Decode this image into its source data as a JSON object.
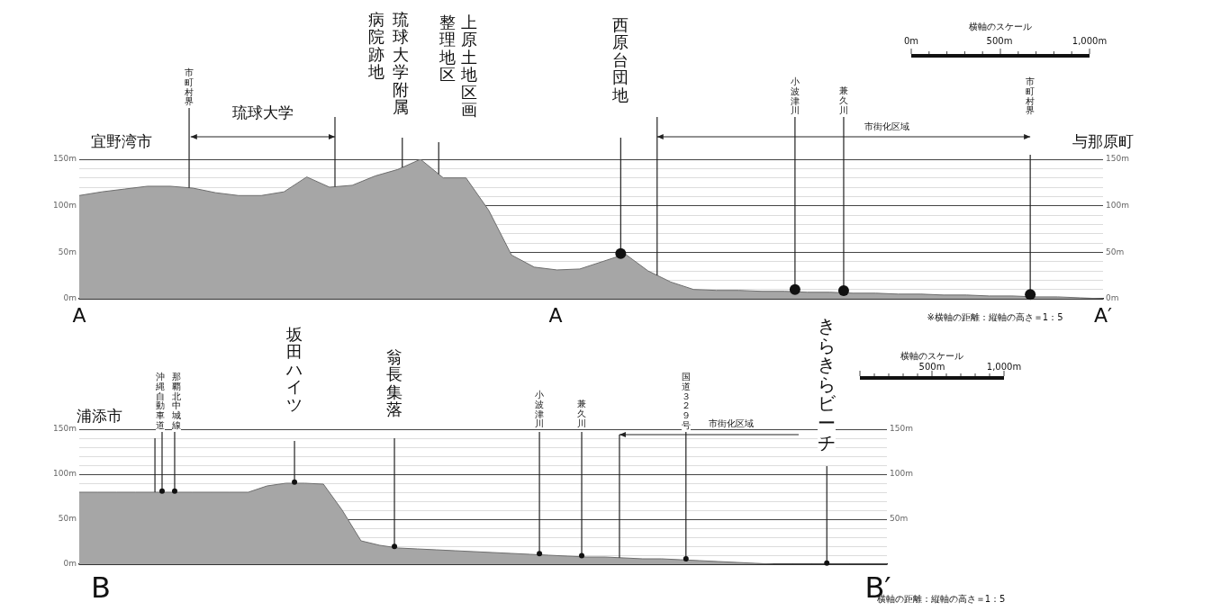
{
  "chart_data": [
    {
      "type": "area",
      "categories": [
        null,
        null,
        null,
        null,
        null,
        null,
        null,
        null,
        null,
        null,
        null,
        null,
        null,
        null,
        null,
        null,
        null,
        null,
        null,
        null,
        null,
        null,
        null,
        null,
        null,
        null,
        null,
        null,
        null,
        null,
        null,
        null,
        null,
        null,
        null,
        null,
        null,
        null,
        null,
        null,
        null,
        null,
        null,
        null,
        null,
        null
      ],
      "values": [
        111,
        115,
        118,
        121,
        121,
        119,
        114,
        111,
        111,
        115,
        131,
        120,
        122,
        132,
        139,
        150,
        130,
        130,
        95,
        47,
        34,
        31,
        32,
        40,
        48,
        30,
        18,
        10,
        9,
        9,
        8,
        8,
        7,
        7,
        6,
        6,
        5,
        5,
        4,
        4,
        3,
        3,
        2,
        2,
        1,
        0
      ],
      "color": "#a6a6a6",
      "ylim": [
        0,
        150
      ],
      "yticks": [
        {
          "value": 0,
          "label": "0m"
        },
        {
          "value": 10,
          "label": null
        },
        {
          "value": 20,
          "label": null
        },
        {
          "value": 30,
          "label": null
        },
        {
          "value": 40,
          "label": null
        },
        {
          "value": 50,
          "label": "50m"
        },
        {
          "value": 60,
          "label": null
        },
        {
          "value": 70,
          "label": null
        },
        {
          "value": 80,
          "label": null
        },
        {
          "value": 90,
          "label": null
        },
        {
          "value": 100,
          "label": "100m"
        },
        {
          "value": 110,
          "label": null
        },
        {
          "value": 120,
          "label": null
        },
        {
          "value": 130,
          "label": null
        },
        {
          "value": 140,
          "label": null
        },
        {
          "value": 150,
          "label": "150m"
        }
      ],
      "y2lim": [
        0,
        150
      ],
      "y2ticks": [
        {
          "value": 0,
          "label": "0m"
        },
        {
          "value": 50,
          "label": "50m"
        },
        {
          "value": 100,
          "label": "100m"
        },
        {
          "value": 150,
          "label": "150m"
        }
      ],
      "grid": "y",
      "tick_labels": "y",
      "legend": false,
      "annotations": [
        "宜野湾市",
        "市町村界",
        "琉球大学",
        "琉球大学附属",
        "病院跡地",
        "上原土地区画",
        "整理地区",
        "西原台団地",
        "市街化区域",
        "小波津川",
        "兼久川",
        "市町村界",
        "与那原町",
        "横軸のスケール",
        "0m",
        "500m",
        "1,000m",
        "A",
        "A",
        "A′",
        "※横軸の距離：縦軸の高さ＝1：5"
      ]
    },
    {
      "type": "area",
      "categories": [
        null,
        null,
        null,
        null,
        null,
        null,
        null,
        null,
        null,
        null,
        null,
        null,
        null,
        null,
        null,
        null,
        null,
        null,
        null,
        null,
        null,
        null,
        null,
        null,
        null,
        null,
        null,
        null,
        null,
        null,
        null,
        null,
        null,
        null,
        null,
        null,
        null,
        null,
        null,
        null,
        null,
        null,
        null,
        null
      ],
      "values": [
        80,
        80,
        80,
        80,
        80,
        80,
        80,
        80,
        80,
        80,
        87,
        90,
        90,
        89,
        60,
        26,
        21,
        18,
        17,
        16,
        15,
        14,
        13,
        12,
        11,
        10,
        9,
        8,
        8,
        7,
        6,
        6,
        5,
        4,
        3,
        2,
        1,
        0,
        0,
        0,
        0,
        0,
        0,
        0
      ],
      "color": "#a6a6a6",
      "ylim": [
        0,
        150
      ],
      "yticks": [
        {
          "value": 0,
          "label": "0m"
        },
        {
          "value": 10,
          "label": null
        },
        {
          "value": 20,
          "label": null
        },
        {
          "value": 30,
          "label": null
        },
        {
          "value": 40,
          "label": null
        },
        {
          "value": 50,
          "label": "50m"
        },
        {
          "value": 60,
          "label": null
        },
        {
          "value": 70,
          "label": null
        },
        {
          "value": 80,
          "label": null
        },
        {
          "value": 90,
          "label": null
        },
        {
          "value": 100,
          "label": "100m"
        },
        {
          "value": 110,
          "label": null
        },
        {
          "value": 120,
          "label": null
        },
        {
          "value": 130,
          "label": null
        },
        {
          "value": 140,
          "label": null
        },
        {
          "value": 150,
          "label": "150m"
        }
      ],
      "y2lim": [
        0,
        150
      ],
      "y2ticks": [
        {
          "value": 0,
          "label": null
        },
        {
          "value": 50,
          "label": "50m"
        },
        {
          "value": 100,
          "label": "100m"
        },
        {
          "value": 150,
          "label": "150m"
        }
      ],
      "grid": "y",
      "tick_labels": "y",
      "legend": false,
      "annotations": [
        "浦添市",
        "沖縄自動車道",
        "那覇北中城線",
        "坂田ハイツ",
        "翁長集落",
        "小波津川",
        "兼久川",
        "国道３２９号",
        "市街化区域",
        "きらきらビーチ",
        "横軸のスケール",
        "500m",
        "1,000m",
        "B",
        "B′",
        "横軸の距離：縦軸の高さ＝1：5"
      ]
    }
  ]
}
